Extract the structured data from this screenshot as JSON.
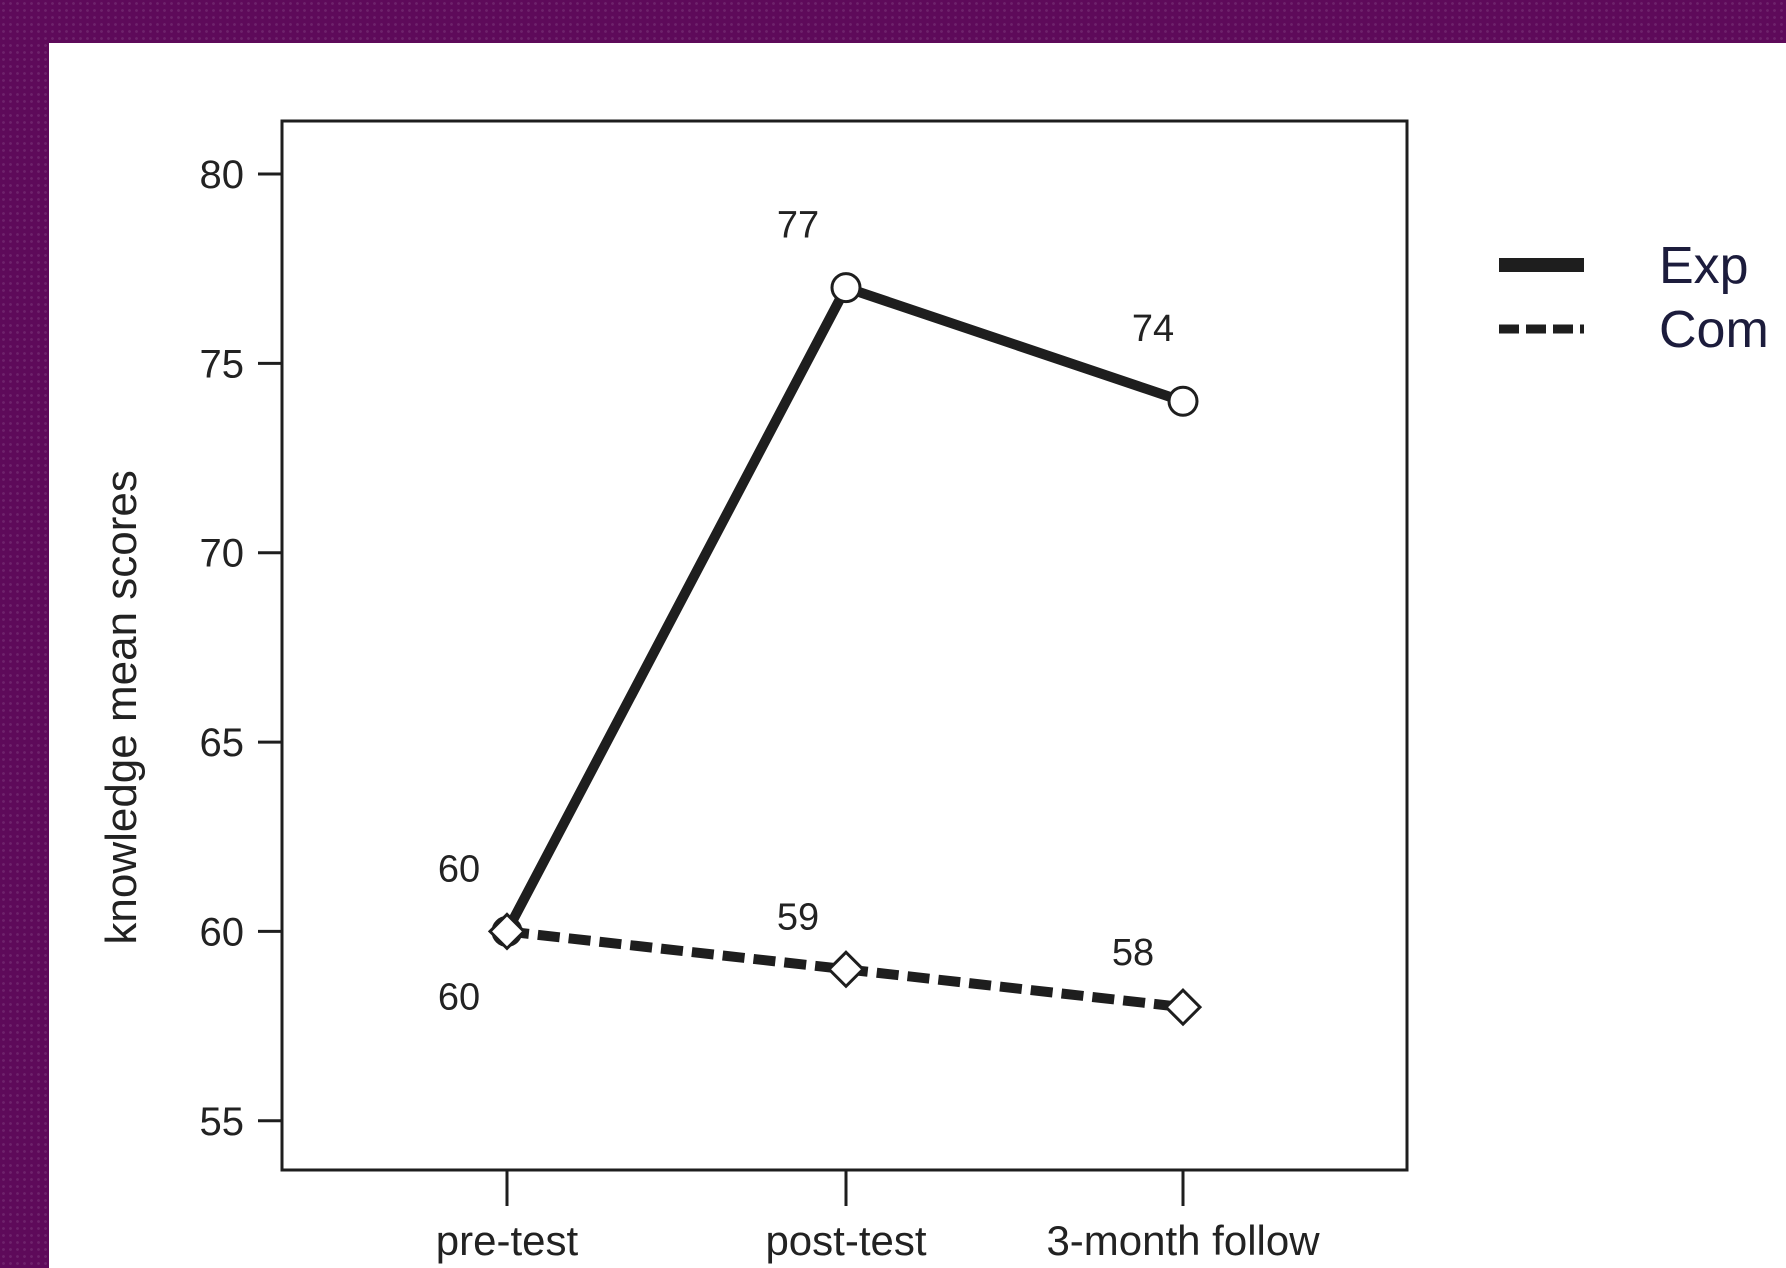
{
  "chart_data": {
    "type": "line",
    "categories": [
      "pre-test",
      "post-test",
      "3-month follow"
    ],
    "series": [
      {
        "name": "Exp",
        "values": [
          60,
          77,
          74
        ],
        "line_style": "solid",
        "marker": "circle",
        "labels": [
          "60",
          "77",
          "74"
        ]
      },
      {
        "name": "Com",
        "values": [
          60,
          59,
          58
        ],
        "line_style": "dashed",
        "marker": "diamond",
        "labels": [
          "60",
          "59",
          "58"
        ]
      }
    ],
    "title": "",
    "xlabel": "",
    "ylabel": "knowledge mean scores",
    "ylim": [
      53.7,
      81.4
    ],
    "yticks": [
      "55",
      "60",
      "65",
      "70",
      "75",
      "80"
    ],
    "grid": false,
    "legend": "right-top",
    "colors": {
      "line": "#1e1e1e",
      "marker_fill": "#ffffff",
      "legend_text": "#1c1c3c",
      "background": "#5e0a5a"
    }
  }
}
